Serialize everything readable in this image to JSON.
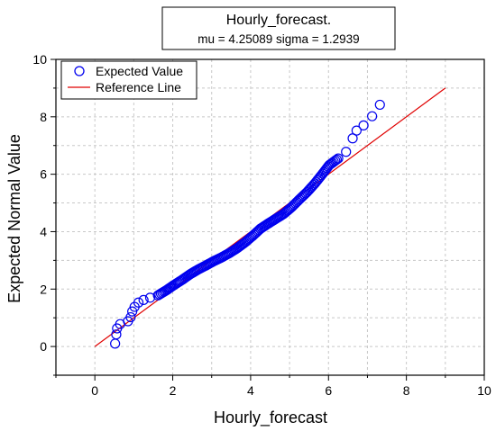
{
  "chart_data": {
    "type": "scatter",
    "title": "Hourly_forecast.",
    "subtitle": "mu = 4.25089  sigma = 1.2939",
    "xlabel": "Hourly_forecast",
    "ylabel": "Expected Normal Value",
    "xlim": [
      -1,
      10
    ],
    "ylim": [
      -1,
      10
    ],
    "xticks": [
      0,
      2,
      4,
      6,
      8,
      10
    ],
    "yticks": [
      0,
      2,
      4,
      6,
      8,
      10
    ],
    "grid": true,
    "legend_position": "top-left",
    "series": [
      {
        "name": "Expected Value",
        "marker": "open-circle",
        "color": "#0000ee",
        "points": [
          [
            0.52,
            0.1
          ],
          [
            0.55,
            0.42
          ],
          [
            0.57,
            0.63
          ],
          [
            0.65,
            0.78
          ],
          [
            0.85,
            0.88
          ],
          [
            0.92,
            1.02
          ],
          [
            0.96,
            1.22
          ],
          [
            1.02,
            1.38
          ],
          [
            1.12,
            1.53
          ],
          [
            1.25,
            1.62
          ],
          [
            1.42,
            1.7
          ],
          [
            1.62,
            1.78
          ],
          [
            1.85,
            1.97
          ],
          [
            2.02,
            2.13
          ],
          [
            2.25,
            2.33
          ],
          [
            2.45,
            2.52
          ],
          [
            2.65,
            2.68
          ],
          [
            2.85,
            2.82
          ],
          [
            3.05,
            2.97
          ],
          [
            3.25,
            3.1
          ],
          [
            3.45,
            3.25
          ],
          [
            3.65,
            3.42
          ],
          [
            3.85,
            3.62
          ],
          [
            4.05,
            3.85
          ],
          [
            4.25,
            4.1
          ],
          [
            4.45,
            4.28
          ],
          [
            4.65,
            4.45
          ],
          [
            4.85,
            4.62
          ],
          [
            5.05,
            4.85
          ],
          [
            5.25,
            5.12
          ],
          [
            5.45,
            5.38
          ],
          [
            5.65,
            5.68
          ],
          [
            5.85,
            6.02
          ],
          [
            6.02,
            6.32
          ],
          [
            6.25,
            6.55
          ],
          [
            6.45,
            6.78
          ],
          [
            6.62,
            7.25
          ],
          [
            6.72,
            7.52
          ],
          [
            6.9,
            7.7
          ],
          [
            7.12,
            8.02
          ],
          [
            7.32,
            8.42
          ]
        ]
      },
      {
        "name": "Reference Line",
        "color": "#e00000",
        "x": [
          0,
          9
        ],
        "y": [
          0,
          9
        ]
      }
    ]
  }
}
